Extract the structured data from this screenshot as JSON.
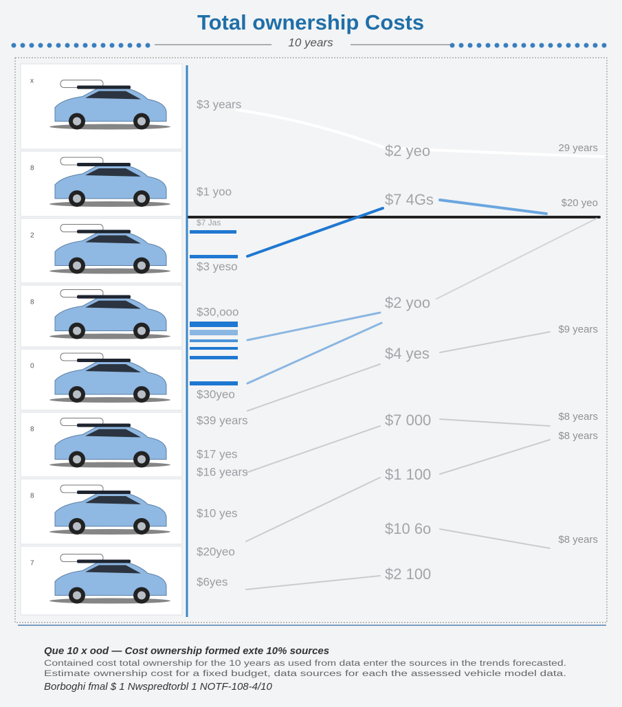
{
  "header": {
    "title": "Total ownership Costs",
    "subtitle": "10 years"
  },
  "rows": [
    {
      "number": "x"
    },
    {
      "number": "8"
    },
    {
      "number": "2"
    },
    {
      "number": "8"
    },
    {
      "number": "0"
    },
    {
      "number": "8"
    },
    {
      "number": "8"
    },
    {
      "number": "7"
    }
  ],
  "left_labels": [
    "$3 years",
    "$1 yoo",
    "$7 Jas",
    "$3 yeso",
    "$30,ooo",
    "$30yeo",
    "$39 years",
    "$17 yes",
    "$16 years",
    "$10 yes",
    "$20yeo",
    "$6yes"
  ],
  "middle_labels": [
    "$2 yeo",
    "$7 4Gs",
    "$2 yoo",
    "$4 yes",
    "$7 000",
    "$1 100",
    "$10 6o",
    "$2 100"
  ],
  "right_labels": [
    "29 years",
    "$20 yeo",
    "$9 years",
    "$8 years",
    "$8 years",
    "$8 years"
  ],
  "footer": {
    "heading": "Que 10 x ood — Cost ownership formed exte 10% sources",
    "lines": [
      "Contained cost total ownership for the 10 years as used from data enter the sources in the trends forecasted.",
      "Estimate ownership cost for a fixed budget, data sources for each the assessed vehicle model data."
    ],
    "source": "Borboghi fmal $ 1 Nwspredtorbl 1 NOTF-108-4/10"
  }
}
